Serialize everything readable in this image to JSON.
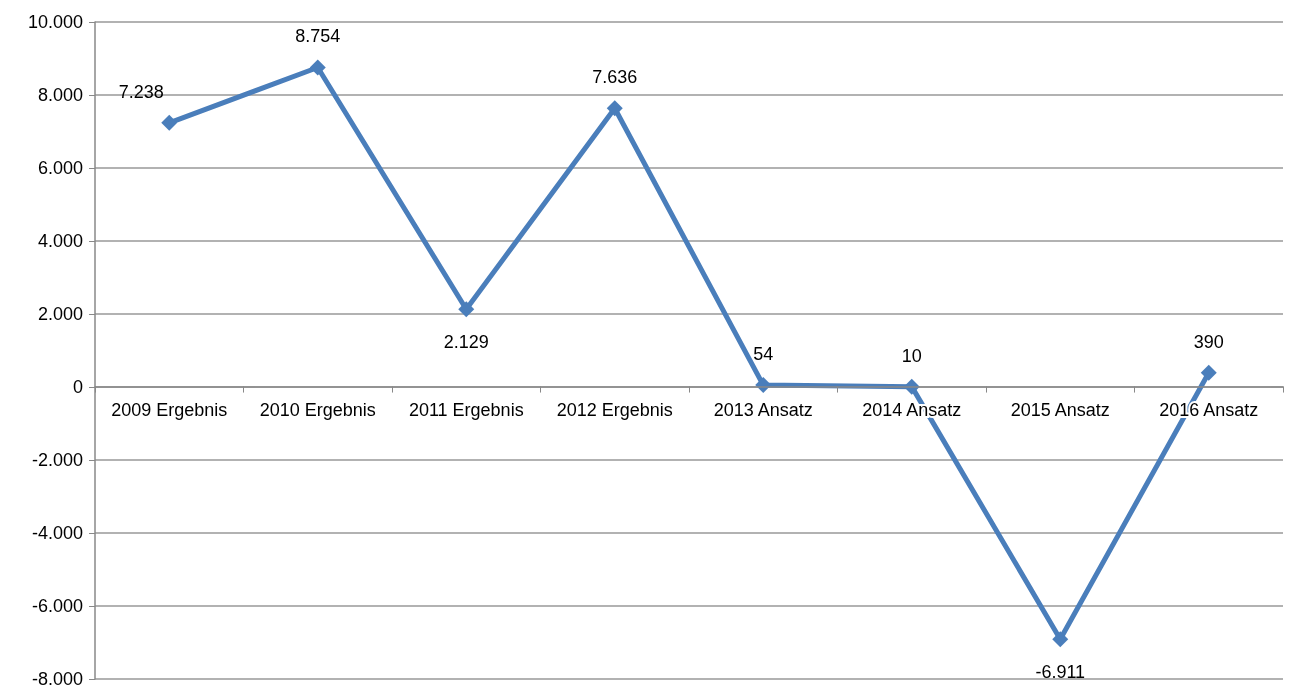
{
  "chart_data": {
    "type": "line",
    "categories": [
      "2009 Ergebnis",
      "2010 Ergebnis",
      "2011 Ergebnis",
      "2012 Ergebnis",
      "2013 Ansatz",
      "2014 Ansatz",
      "2015 Ansatz",
      "2016 Ansatz"
    ],
    "series": [
      {
        "color": "#4a7ebb",
        "values": [
          7238,
          8754,
          2129,
          7636,
          54,
          10,
          -6911,
          390
        ],
        "value_labels": [
          "7.238",
          "8.754",
          "2.129",
          "7.636",
          "54",
          "10",
          "-6.911",
          "390"
        ]
      }
    ],
    "ylim": [
      -8000,
      10000
    ],
    "yticks": [
      {
        "value": -8000,
        "label": "-8.000"
      },
      {
        "value": -6000,
        "label": "-6.000"
      },
      {
        "value": -4000,
        "label": "-4.000"
      },
      {
        "value": -2000,
        "label": "-2.000"
      },
      0,
      {
        "value": 2000,
        "label": "2.000"
      },
      {
        "value": 4000,
        "label": "4.000"
      },
      {
        "value": 6000,
        "label": "6.000"
      },
      {
        "value": 8000,
        "label": "8.000"
      },
      {
        "value": 10000,
        "label": "10.000"
      }
    ],
    "grid": "y",
    "marker": "diamond",
    "line_style": "solid"
  }
}
